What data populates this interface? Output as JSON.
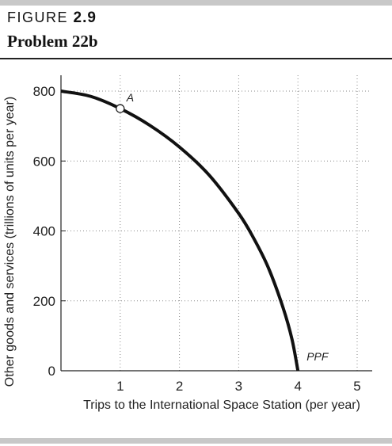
{
  "figure": {
    "label_word": "FIGURE",
    "label_number": "2.9",
    "title": "Problem 22b"
  },
  "colors": {
    "curve": "#111111",
    "grid": "#8a8a8a",
    "rules": "#c8c8c8"
  },
  "chart_data": {
    "type": "line",
    "title": "",
    "xlabel": "Trips to the International Space Station (per year)",
    "ylabel": "Other goods and services (trillions of units per  year)",
    "xlim": [
      0,
      5
    ],
    "ylim": [
      0,
      800
    ],
    "x_ticks": [
      1,
      2,
      3,
      4,
      5
    ],
    "x_tick_labels": [
      "1",
      "2",
      "3",
      "4",
      "5"
    ],
    "y_ticks": [
      0,
      200,
      400,
      600,
      800
    ],
    "y_tick_labels": [
      "0",
      "200",
      "400",
      "600",
      "800"
    ],
    "grid": "dotted",
    "series": [
      {
        "name": "PPF",
        "x": [
          0,
          0.5,
          1,
          1.5,
          2,
          2.5,
          3,
          3.25,
          3.5,
          3.75,
          3.9,
          4
        ],
        "y": [
          800,
          785,
          750,
          702,
          640,
          560,
          450,
          380,
          295,
          180,
          90,
          0
        ]
      }
    ],
    "annotations": [
      {
        "text": "A",
        "x": 1,
        "y": 750,
        "marker": "open-circle"
      },
      {
        "text": "PPF",
        "x": 4,
        "y": 0
      }
    ]
  }
}
